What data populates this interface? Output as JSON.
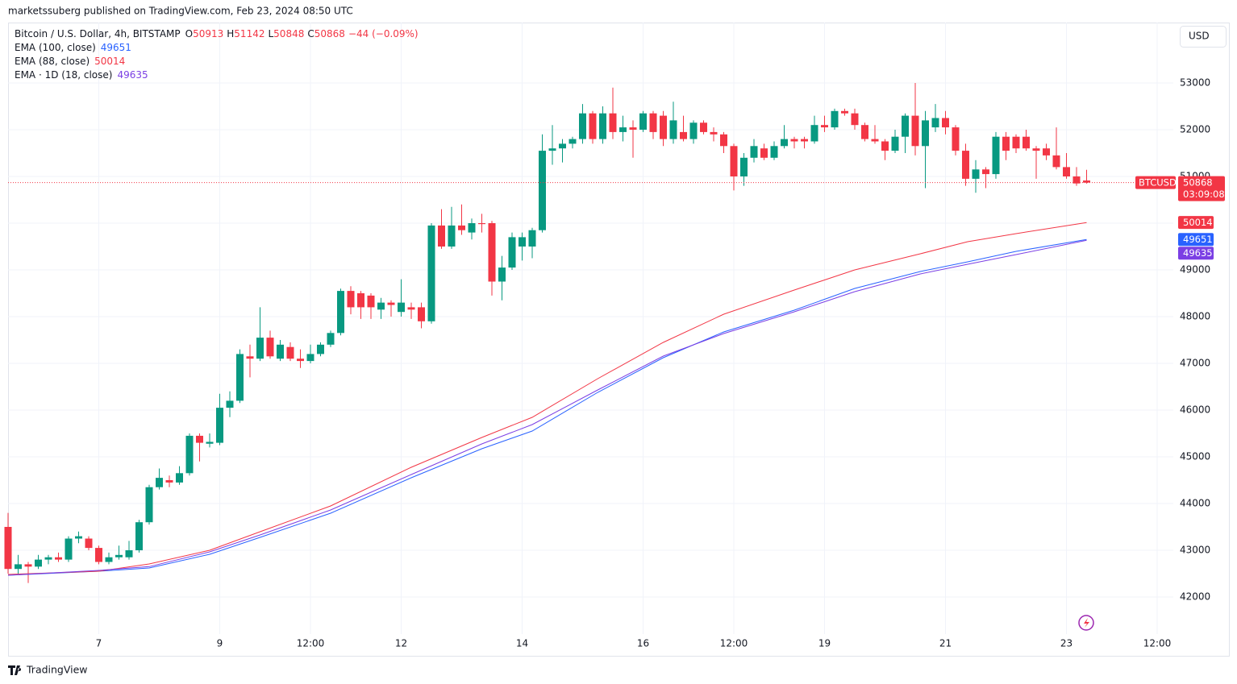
{
  "header": {
    "publisher": "marketssuberg published on TradingView.com, Feb 23, 2024 08:50 UTC",
    "currency": "USD",
    "brand": "TradingView"
  },
  "chart_data": {
    "type": "candlestick",
    "title": "Bitcoin / U.S. Dollar, 4h, BITSTAMP",
    "ohlc_labels": [
      "O",
      "H",
      "L",
      "C"
    ],
    "change": "−44 (−0.09%)",
    "symbol": "BTCUSD",
    "countdown": "03:09:08",
    "up_color": "#089981",
    "down_color": "#f23645",
    "open": [
      43500,
      42600,
      42700,
      42650,
      42800,
      42850,
      42800,
      43250,
      43250,
      43050,
      42750,
      42850,
      42850,
      43000,
      43600,
      44350,
      44500,
      44450,
      44650,
      45450,
      45280,
      45300,
      46050,
      46200,
      47150,
      47100,
      47550,
      47100,
      47350,
      47100,
      47050,
      47200,
      47400,
      47650,
      48550,
      48500,
      48450,
      48150,
      48300,
      48100,
      48200,
      48200,
      47900,
      49950,
      49500,
      49950,
      49800,
      50000,
      50000,
      48750,
      49050,
      49500,
      49500,
      49850,
      51550,
      51600,
      51700,
      51800,
      52350,
      51800,
      52350,
      51950,
      52050,
      52000,
      52350,
      52300,
      51800,
      51950,
      51800,
      52150,
      51950,
      51900,
      51650,
      51000,
      51400,
      51600,
      51400,
      51650,
      51800,
      51800,
      51750,
      52100,
      52050,
      52400,
      52350,
      52100,
      51800,
      51750,
      51550,
      51850,
      52300,
      51650,
      52050,
      52250,
      52050,
      51550,
      50950,
      51150,
      51050,
      51850,
      51850,
      51850,
      51600,
      51600,
      51450,
      51200,
      51000,
      50913
    ],
    "high": [
      43800,
      42900,
      42750,
      42900,
      42900,
      42950,
      43300,
      43400,
      43300,
      43100,
      42950,
      43100,
      43200,
      43650,
      44400,
      44750,
      44600,
      44800,
      45500,
      45500,
      45500,
      46350,
      46400,
      47300,
      47400,
      48200,
      47700,
      47500,
      47450,
      47300,
      47400,
      47450,
      47700,
      48600,
      48650,
      48550,
      48500,
      48400,
      48350,
      48800,
      48300,
      48300,
      50000,
      50300,
      50350,
      50400,
      50100,
      50200,
      50050,
      49300,
      49800,
      49800,
      49900,
      51900,
      52100,
      51800,
      51850,
      52550,
      52400,
      52500,
      52900,
      52300,
      52200,
      52400,
      52400,
      52400,
      52600,
      52300,
      52200,
      52200,
      52050,
      51950,
      51700,
      51500,
      51800,
      51700,
      51750,
      52100,
      51850,
      51850,
      52300,
      52300,
      52450,
      52450,
      52450,
      52150,
      52100,
      51800,
      52000,
      52350,
      53000,
      52400,
      52550,
      52400,
      52100,
      51700,
      51350,
      51200,
      51950,
      51950,
      51900,
      52000,
      51650,
      51700,
      52050,
      51500,
      51200,
      51142
    ],
    "low": [
      42500,
      42500,
      42300,
      42600,
      42700,
      42750,
      42750,
      43150,
      43000,
      42700,
      42700,
      42800,
      42800,
      42950,
      43550,
      44300,
      44350,
      44400,
      44600,
      44900,
      45200,
      45250,
      45850,
      46150,
      46700,
      47050,
      47100,
      47050,
      47050,
      46900,
      47000,
      47150,
      47350,
      47600,
      48050,
      47950,
      47950,
      47950,
      48000,
      48000,
      47950,
      47750,
      47850,
      49450,
      49450,
      49750,
      49650,
      49800,
      48450,
      48350,
      49000,
      49200,
      49250,
      49800,
      51250,
      51300,
      51600,
      51700,
      51700,
      51700,
      51800,
      51750,
      51400,
      51950,
      51800,
      51650,
      51700,
      51750,
      51700,
      51900,
      51750,
      51500,
      50700,
      50800,
      51300,
      51350,
      51350,
      51600,
      51600,
      51600,
      51700,
      51950,
      52000,
      52300,
      52000,
      51750,
      51700,
      51350,
      51500,
      51500,
      51450,
      50750,
      51950,
      51900,
      51450,
      50800,
      50650,
      50750,
      50950,
      51350,
      51500,
      51550,
      50950,
      51350,
      51150,
      50950,
      50800,
      50848
    ],
    "close": [
      42600,
      42700,
      42650,
      42800,
      42850,
      42800,
      43250,
      43300,
      43050,
      42750,
      42850,
      42900,
      43000,
      43600,
      44350,
      44550,
      44450,
      44650,
      45450,
      45300,
      45320,
      46050,
      46200,
      47200,
      47100,
      47550,
      47150,
      47400,
      47100,
      47050,
      47200,
      47400,
      47650,
      48550,
      48200,
      48200,
      48200,
      48300,
      48250,
      48300,
      48150,
      47900,
      49950,
      49500,
      49950,
      49850,
      50000,
      49980,
      48750,
      49050,
      49700,
      49700,
      49850,
      51550,
      51600,
      51700,
      51800,
      52350,
      51800,
      52350,
      51950,
      52050,
      52000,
      52350,
      51950,
      51800,
      52200,
      51800,
      52150,
      51950,
      51900,
      51650,
      51000,
      51400,
      51650,
      51400,
      51650,
      51800,
      51750,
      51750,
      52100,
      52050,
      52400,
      52350,
      52100,
      51800,
      51750,
      51550,
      51850,
      52300,
      51650,
      52200,
      52250,
      52050,
      51550,
      50950,
      51150,
      51050,
      51850,
      51550,
      51600,
      51600,
      51550,
      51450,
      51200,
      51000,
      50850,
      50868
    ],
    "series": [
      {
        "name": "EMA (100, close)",
        "color": "#2962ff",
        "x": [
          0,
          9,
          14,
          20,
          25,
          32,
          40,
          47,
          52,
          58.5,
          65,
          71,
          78,
          84,
          90.5,
          95.2,
          100,
          107
        ],
        "values": [
          42466,
          42552,
          42621,
          42914,
          43276,
          43793,
          44552,
          45172,
          45552,
          46379,
          47121,
          47672,
          48138,
          48603,
          48966,
          49172,
          49397,
          49651
        ]
      },
      {
        "name": "EMA (88, close)",
        "color": "#f23645",
        "x": [
          0,
          9,
          14,
          20,
          25,
          32,
          40,
          47,
          52,
          58.5,
          65,
          71,
          78,
          84,
          90.5,
          95.2,
          100,
          107
        ],
        "values": [
          42483,
          42552,
          42707,
          43000,
          43397,
          43948,
          44776,
          45414,
          45845,
          46672,
          47448,
          48052,
          48569,
          49000,
          49345,
          49603,
          49776,
          50014
        ]
      },
      {
        "name": "EMA · 1D (18, close)",
        "color": "#7b3fe4",
        "x": [
          0,
          9,
          14,
          20,
          25,
          32,
          40,
          47,
          52,
          58.5,
          65,
          71,
          78,
          84,
          90.5,
          95.2,
          100,
          107
        ],
        "values": [
          42466,
          42569,
          42650,
          42966,
          43328,
          43862,
          44621,
          45276,
          45690,
          46431,
          47155,
          47638,
          48103,
          48534,
          48914,
          49121,
          49328,
          49635
        ]
      }
    ],
    "xlim": [
      0,
      115.6
    ],
    "xticks": [
      {
        "value": 9,
        "label": "7"
      },
      {
        "value": 21,
        "label": "9"
      },
      {
        "value": 30,
        "label": "12:00"
      },
      {
        "value": 39,
        "label": "12"
      },
      {
        "value": 51,
        "label": "14"
      },
      {
        "value": 63,
        "label": "16"
      },
      {
        "value": 72,
        "label": "12:00"
      },
      {
        "value": 81,
        "label": "19"
      },
      {
        "value": 93,
        "label": "21"
      },
      {
        "value": 105,
        "label": "23"
      },
      {
        "value": 114,
        "label": "12:00"
      }
    ],
    "ylim": [
      41207,
      54293
    ],
    "yticks": [
      42000,
      43000,
      44000,
      45000,
      46000,
      47000,
      48000,
      49000,
      50000,
      51000,
      52000,
      53000
    ],
    "grid": true
  }
}
